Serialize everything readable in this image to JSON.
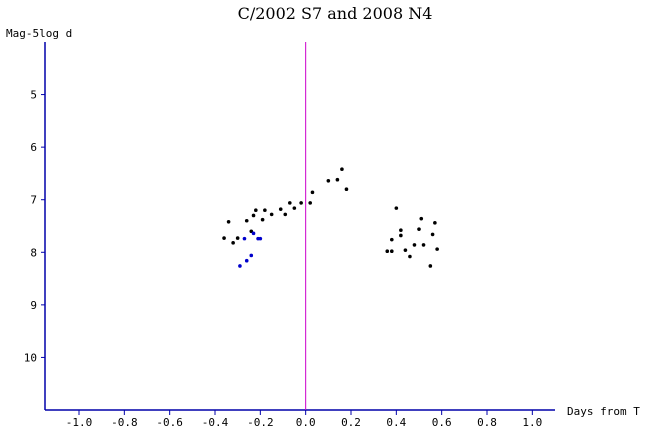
{
  "chart_data": {
    "type": "scatter",
    "title": "C/2002 S7 and 2008 N4",
    "xlabel": "Days from T",
    "ylabel": "Mag-5log d",
    "xlim": [
      -1.15,
      1.1
    ],
    "ylim": [
      11.0,
      4.0
    ],
    "y_inverted": true,
    "x_ticks": [
      -1.0,
      -0.8,
      -0.6,
      -0.4,
      -0.2,
      0.0,
      0.2,
      0.4,
      0.6,
      0.8,
      1.0
    ],
    "x_tick_labels": [
      "-1.0",
      "-0.8",
      "-0.6",
      "-0.4",
      "-0.2",
      "0.0",
      "0.2",
      "0.4",
      "0.6",
      "0.8",
      "1.0"
    ],
    "y_ticks": [
      5,
      6,
      7,
      8,
      9,
      10
    ],
    "y_tick_labels": [
      "5",
      "6",
      "7",
      "8",
      "9",
      "10"
    ],
    "reference_line": {
      "x": 0.0,
      "color": "#cc00cc"
    },
    "series": [
      {
        "color": "#000000",
        "points": [
          [
            -0.36,
            7.73
          ],
          [
            -0.34,
            7.42
          ],
          [
            -0.32,
            7.82
          ],
          [
            -0.3,
            7.73
          ],
          [
            -0.26,
            7.4
          ],
          [
            -0.24,
            7.6
          ],
          [
            -0.23,
            7.3
          ],
          [
            -0.22,
            7.2
          ],
          [
            -0.19,
            7.38
          ],
          [
            -0.18,
            7.2
          ],
          [
            -0.15,
            7.28
          ],
          [
            -0.11,
            7.18
          ],
          [
            -0.09,
            7.28
          ],
          [
            -0.07,
            7.06
          ],
          [
            -0.05,
            7.16
          ],
          [
            -0.02,
            7.06
          ],
          [
            0.02,
            7.06
          ],
          [
            0.03,
            6.86
          ],
          [
            0.1,
            6.64
          ],
          [
            0.14,
            6.62
          ],
          [
            0.16,
            6.42
          ],
          [
            0.18,
            6.8
          ],
          [
            0.36,
            7.98
          ],
          [
            0.38,
            7.98
          ],
          [
            0.38,
            7.76
          ],
          [
            0.4,
            7.16
          ],
          [
            0.42,
            7.58
          ],
          [
            0.42,
            7.68
          ],
          [
            0.44,
            7.96
          ],
          [
            0.46,
            8.08
          ],
          [
            0.48,
            7.86
          ],
          [
            0.5,
            7.56
          ],
          [
            0.51,
            7.36
          ],
          [
            0.52,
            7.86
          ],
          [
            0.55,
            8.26
          ],
          [
            0.56,
            7.66
          ],
          [
            0.57,
            7.44
          ],
          [
            0.58,
            7.94
          ]
        ]
      },
      {
        "color": "#0000cc",
        "points": [
          [
            -0.29,
            8.26
          ],
          [
            -0.27,
            7.74
          ],
          [
            -0.26,
            8.16
          ],
          [
            -0.24,
            8.06
          ],
          [
            -0.23,
            7.64
          ],
          [
            -0.21,
            7.74
          ],
          [
            -0.2,
            7.74
          ]
        ]
      }
    ]
  }
}
